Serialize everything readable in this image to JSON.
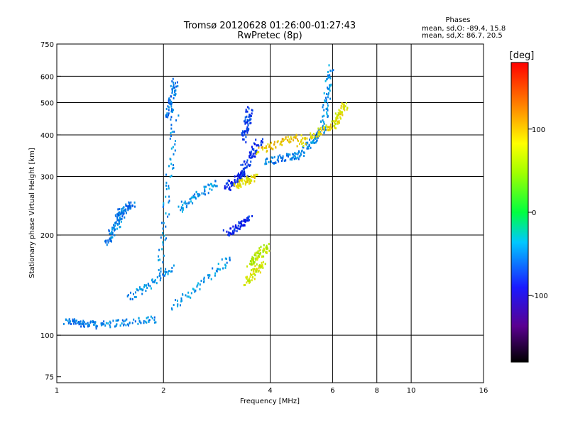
{
  "chart_data": {
    "type": "scatter",
    "title": "Tromsø 20120628 01:26:00-01:27:43",
    "subtitle": "RwPretec (8p)",
    "xlabel": "Frequency [MHz]",
    "ylabel": "Stationary phase Virtual Height [km]",
    "x_scale": "log",
    "y_scale": "log",
    "xlim": [
      1,
      16
    ],
    "ylim": [
      72,
      750
    ],
    "x_ticks": [
      1,
      2,
      4,
      6,
      8,
      10,
      16
    ],
    "y_ticks": [
      75,
      100,
      200,
      300,
      400,
      500,
      600,
      750
    ],
    "grid": true,
    "stats": {
      "heading": "Phases",
      "line_o": "mean, sd,O: -89.4, 15.8",
      "line_x": "mean, sd,X:  86.7, 20.5"
    },
    "colorbar": {
      "label": "[deg]",
      "range": [
        -180,
        180
      ],
      "ticks": [
        100,
        0,
        -100
      ],
      "tick_labels": [
        "100",
        "0",
        "-100"
      ],
      "colormap": "rainbow"
    },
    "series": [
      {
        "mode": "O",
        "segments": [
          {
            "x": [
              1.05,
              1.3
            ],
            "y": [
              111,
              108
            ],
            "phase": -110
          },
          {
            "x": [
              1.3,
              1.9
            ],
            "y": [
              108,
              112
            ],
            "phase": -105
          },
          {
            "x": [
              1.6,
              2.1
            ],
            "y": [
              130,
              160
            ],
            "phase": -100
          },
          {
            "x": [
              2.1,
              3.1
            ],
            "y": [
              122,
              172
            ],
            "phase": -100
          },
          {
            "x": [
              1.38,
              1.52
            ],
            "y": [
              190,
              230
            ],
            "phase": -105
          },
          {
            "x": [
              1.47,
              1.62
            ],
            "y": [
              230,
              250
            ],
            "phase": -110
          },
          {
            "x": [
              1.95,
              2.15
            ],
            "y": [
              160,
              450
            ],
            "phase": -100
          },
          {
            "x": [
              2.05,
              2.15
            ],
            "y": [
              450,
              590
            ],
            "phase": -110
          },
          {
            "x": [
              2.2,
              2.8
            ],
            "y": [
              240,
              290
            ],
            "phase": -100
          },
          {
            "x": [
              3.0,
              3.4
            ],
            "y": [
              280,
              310
            ],
            "phase": -140
          },
          {
            "x": [
              3.3,
              3.75
            ],
            "y": [
              310,
              390
            ],
            "phase": -135
          },
          {
            "x": [
              3.35,
              3.5
            ],
            "y": [
              390,
              480
            ],
            "phase": -130
          },
          {
            "x": [
              3.9,
              4.8
            ],
            "y": [
              335,
              350
            ],
            "phase": -110
          },
          {
            "x": [
              4.8,
              5.6
            ],
            "y": [
              350,
              420
            ],
            "phase": -105
          },
          {
            "x": [
              5.6,
              5.9
            ],
            "y": [
              420,
              640
            ],
            "phase": -100
          },
          {
            "x": [
              3.0,
              3.5
            ],
            "y": [
              205,
              225
            ],
            "phase": -140
          }
        ]
      },
      {
        "mode": "X",
        "segments": [
          {
            "x": [
              3.2,
              3.6
            ],
            "y": [
              285,
              300
            ],
            "phase": 100
          },
          {
            "x": [
              3.7,
              4.8
            ],
            "y": [
              360,
              400
            ],
            "phase": 110
          },
          {
            "x": [
              4.8,
              6.0
            ],
            "y": [
              380,
              430
            ],
            "phase": 100
          },
          {
            "x": [
              6.0,
              6.5
            ],
            "y": [
              430,
              500
            ],
            "phase": 95
          },
          {
            "x": [
              3.4,
              3.8
            ],
            "y": [
              145,
              165
            ],
            "phase": 90
          },
          {
            "x": [
              3.5,
              3.9
            ],
            "y": [
              165,
              185
            ],
            "phase": 80
          }
        ]
      }
    ]
  }
}
